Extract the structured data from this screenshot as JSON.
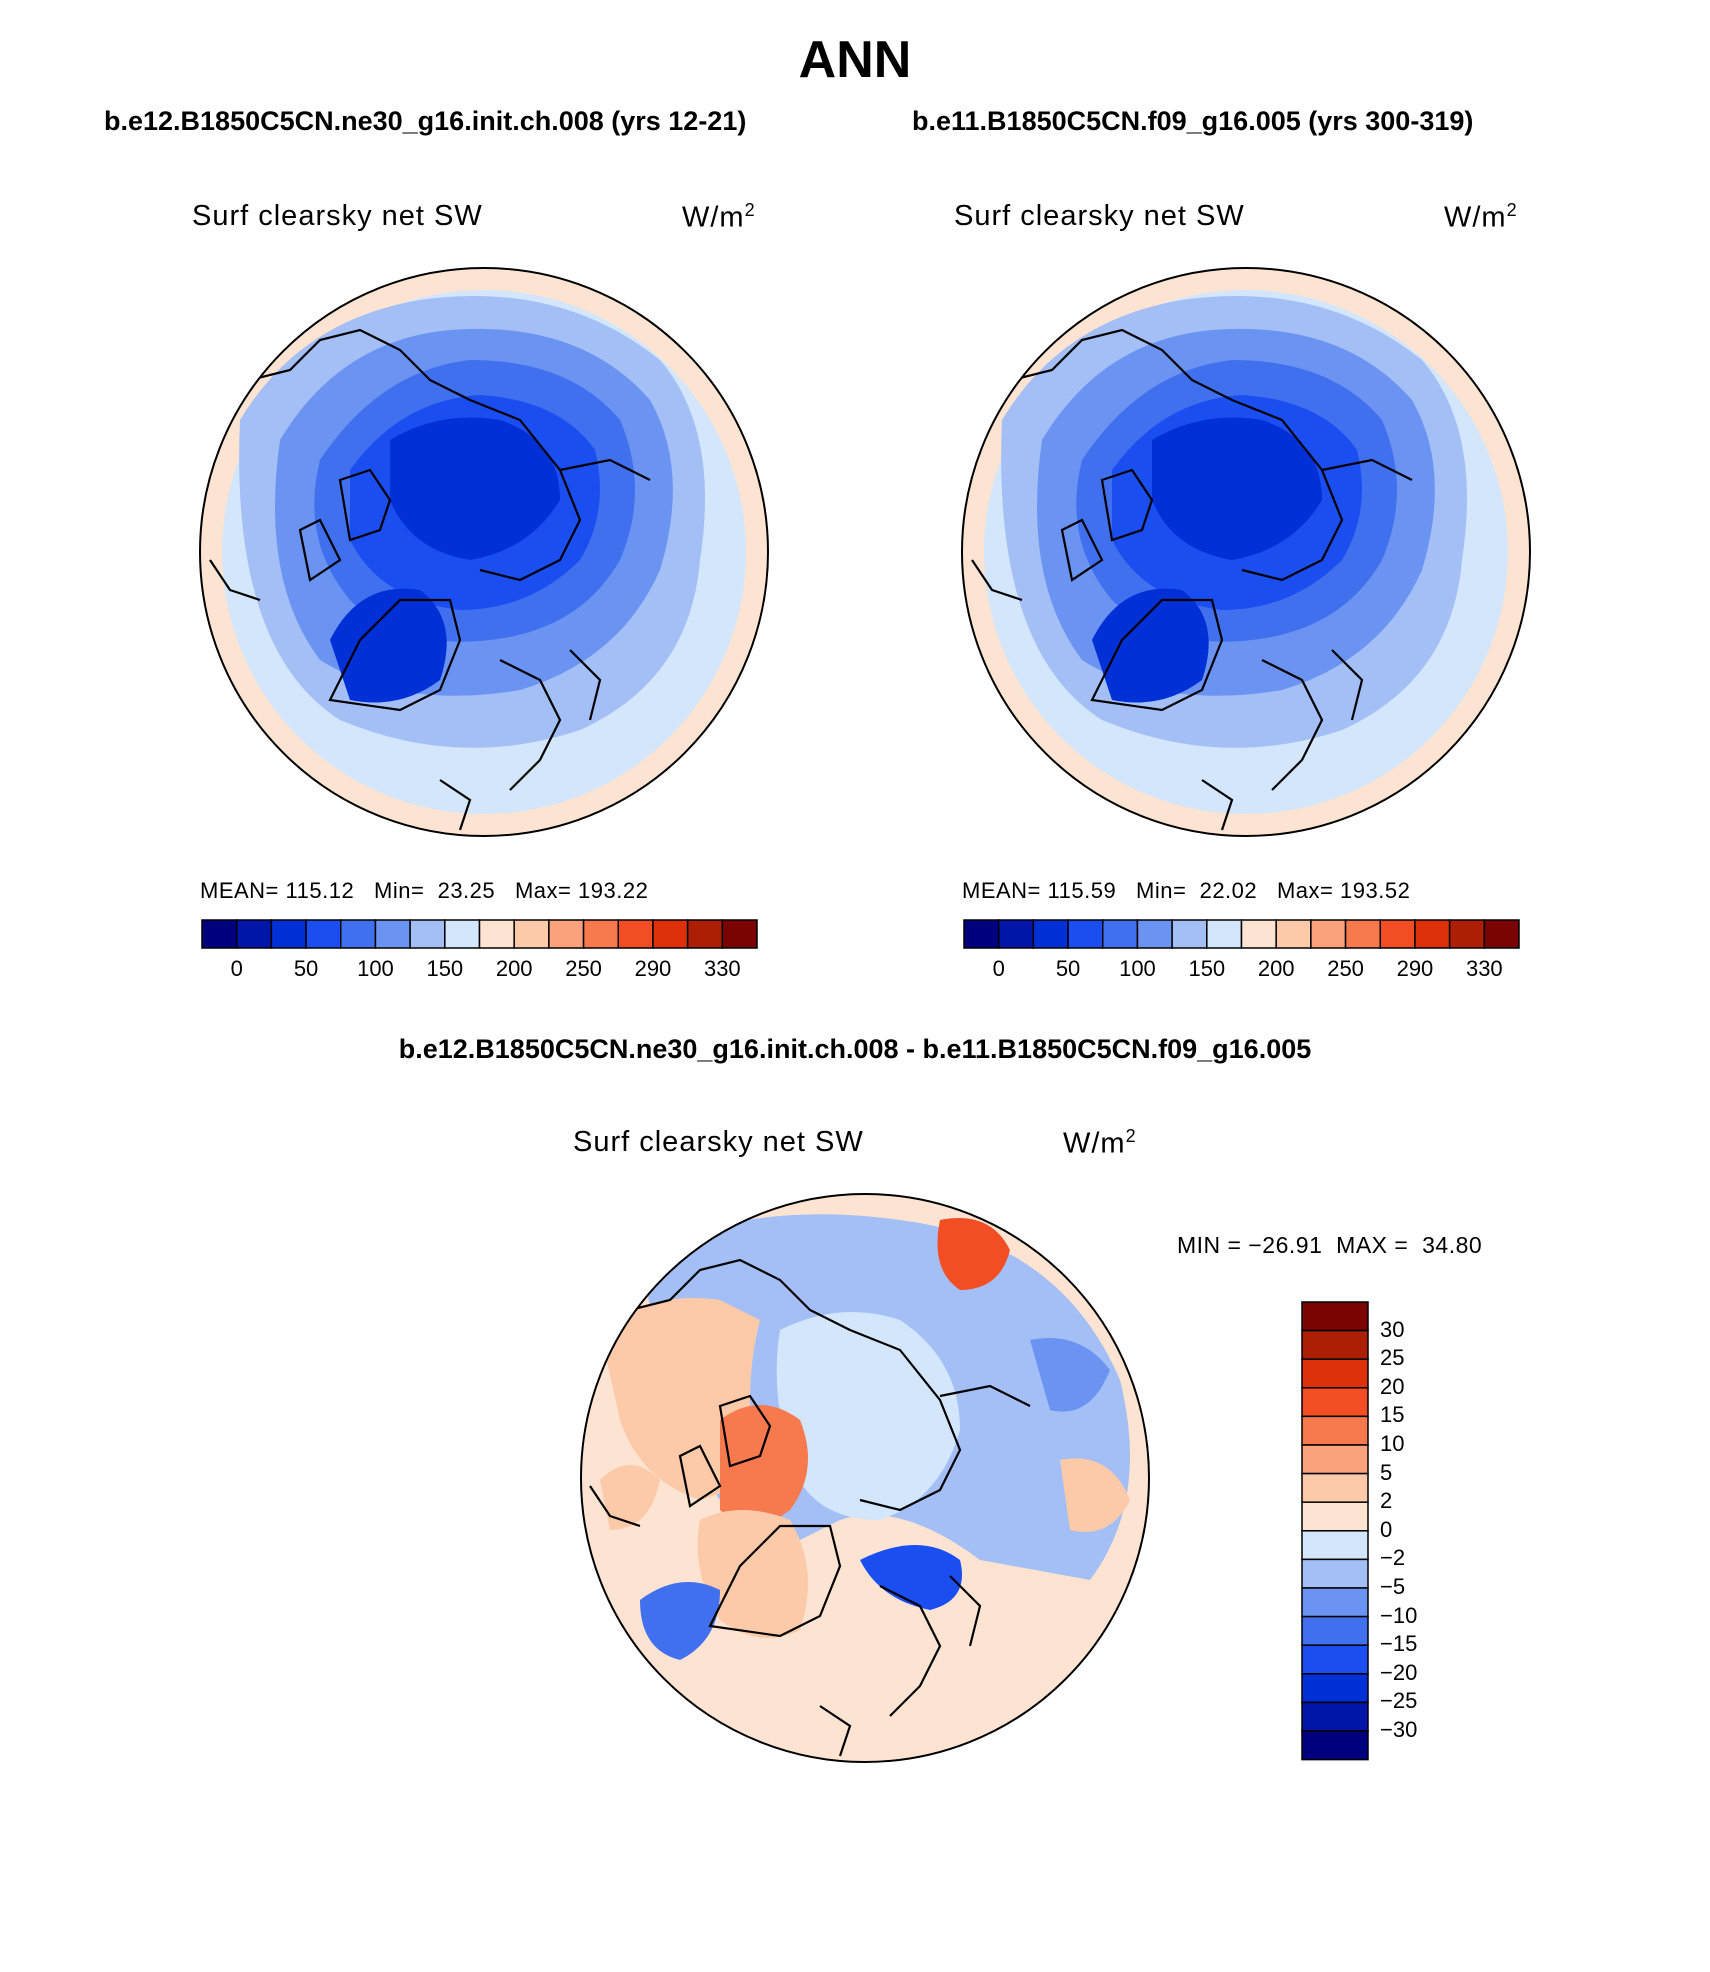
{
  "title": "ANN",
  "colors": {
    "ax": [
      "#00007e",
      "#0016a8",
      "#0030d6",
      "#1a4ef0",
      "#4170ee",
      "#6b93f2",
      "#a3bff5",
      "#d3e6fb",
      "#fde4d2",
      "#fccaa8",
      "#f9a27c",
      "#f77a4f",
      "#f34d24",
      "#de300b",
      "#ad1f05",
      "#7a0303"
    ],
    "diff": [
      "#00007e",
      "#0016a8",
      "#0030d6",
      "#1a4ef0",
      "#4170ee",
      "#6b93f2",
      "#a3bff5",
      "#d3e6fb",
      "#fde4d2",
      "#fccaa8",
      "#f9a27c",
      "#f77a4f",
      "#f34d24",
      "#de300b",
      "#ad1f05",
      "#7a0303"
    ]
  },
  "panels": [
    {
      "case": "b.e12.B1850C5CN.ne30_g16.init.ch.008 (yrs 12-21)",
      "variable": "Surf clearsky net SW",
      "units": "W/m",
      "units_sup": "2",
      "mean_label": "MEAN=",
      "mean": "115.12",
      "min_label": "Min=",
      "min": "23.25",
      "max_label": "Max=",
      "max": "193.22",
      "levels": [
        "0",
        "50",
        "100",
        "150",
        "200",
        "250",
        "290",
        "330"
      ]
    },
    {
      "case": "b.e11.B1850C5CN.f09_g16.005 (yrs 300-319)",
      "variable": "Surf clearsky net SW",
      "units": "W/m",
      "units_sup": "2",
      "mean_label": "MEAN=",
      "mean": "115.59",
      "min_label": "Min=",
      "min": "22.02",
      "max_label": "Max=",
      "max": "193.52",
      "levels": [
        "0",
        "50",
        "100",
        "150",
        "200",
        "250",
        "290",
        "330"
      ]
    }
  ],
  "difference": {
    "title": "b.e12.B1850C5CN.ne30_g16.init.ch.008 - b.e11.B1850C5CN.f09_g16.005",
    "variable": "Surf clearsky net SW",
    "units": "W/m",
    "units_sup": "2",
    "min_label": "MIN =",
    "min": "−26.91",
    "max_label": "MAX =",
    "max": "34.80",
    "levels": [
      "30",
      "25",
      "20",
      "15",
      "10",
      "5",
      "2",
      "0",
      "−2",
      "−5",
      "−10",
      "−15",
      "−20",
      "−25",
      "−30"
    ]
  }
}
